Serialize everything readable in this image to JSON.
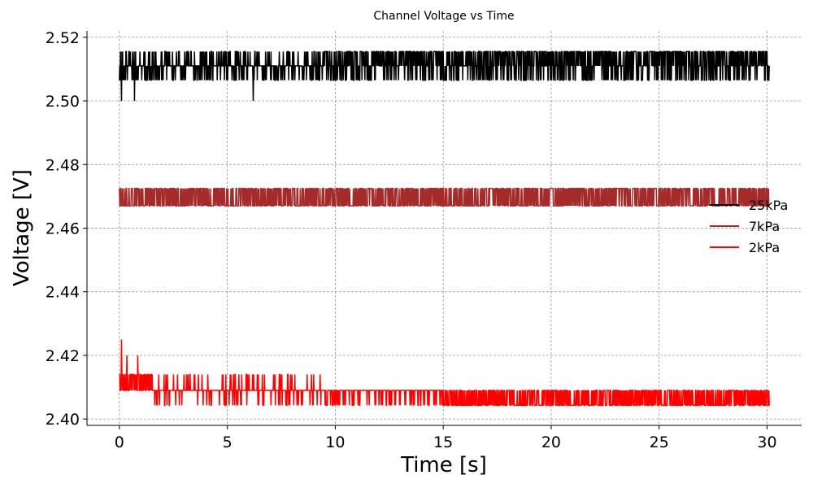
{
  "chart_data": {
    "type": "line",
    "title": "Channel Voltage vs Time",
    "xlabel": "Time [s]",
    "ylabel": "Voltage [V]",
    "xlim": [
      -1.5,
      31.6
    ],
    "ylim": [
      2.398,
      2.522
    ],
    "xticks": [
      0,
      5,
      10,
      15,
      20,
      25,
      30
    ],
    "xtick_labels": [
      "0",
      "5",
      "10",
      "15",
      "20",
      "25",
      "30"
    ],
    "yticks": [
      2.4,
      2.42,
      2.44,
      2.46,
      2.48,
      2.5,
      2.52
    ],
    "ytick_labels": [
      "2.40",
      "2.42",
      "2.44",
      "2.46",
      "2.48",
      "2.50",
      "2.52"
    ],
    "grid": true,
    "legend_position": "right",
    "x_range": [
      0,
      30.1
    ],
    "series": [
      {
        "name": "25kPa",
        "color": "#000000",
        "levels": [
          2.511,
          2.5155,
          2.5065
        ],
        "rare_dips": [
          [
            0.1,
            2.5
          ],
          [
            0.7,
            2.5
          ],
          [
            6.2,
            2.5
          ]
        ]
      },
      {
        "name": "7kPa",
        "color": "#a52a2a",
        "levels": [
          2.4725,
          2.467
        ]
      },
      {
        "name": "2kPa",
        "color": "#ff0000",
        "levels": [
          2.409,
          2.414,
          2.4043
        ],
        "initial_spikes": [
          [
            0.1,
            2.425
          ],
          [
            0.35,
            2.42
          ],
          [
            0.85,
            2.42
          ]
        ]
      }
    ]
  }
}
